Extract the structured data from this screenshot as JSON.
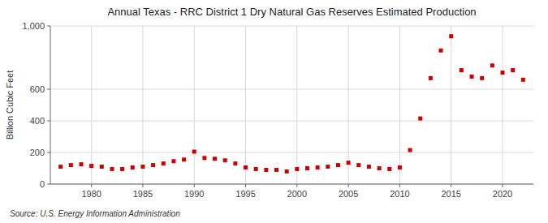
{
  "chart_data": {
    "type": "scatter",
    "title": "Annual Texas - RRC District 1 Dry Natural Gas Reserves Estimated Production",
    "ylabel": "Billion Cubic Feet",
    "annotations": [
      "Source: U.S. Energy Information Administration"
    ],
    "x": [
      1977,
      1978,
      1979,
      1980,
      1981,
      1982,
      1983,
      1984,
      1985,
      1986,
      1987,
      1988,
      1989,
      1990,
      1991,
      1992,
      1993,
      1994,
      1995,
      1996,
      1997,
      1998,
      1999,
      2000,
      2001,
      2002,
      2003,
      2004,
      2005,
      2006,
      2007,
      2008,
      2009,
      2010,
      2011,
      2012,
      2013,
      2014,
      2015,
      2016,
      2017,
      2018,
      2019,
      2020,
      2021,
      2022
    ],
    "values": [
      110,
      120,
      125,
      115,
      110,
      95,
      95,
      105,
      110,
      120,
      130,
      145,
      155,
      205,
      165,
      160,
      150,
      130,
      105,
      95,
      90,
      90,
      80,
      95,
      100,
      105,
      110,
      120,
      135,
      120,
      110,
      100,
      95,
      105,
      215,
      415,
      670,
      845,
      935,
      720,
      680,
      670,
      750,
      705,
      720,
      660
    ],
    "color": "#cc0000",
    "marker": "square",
    "xlim": [
      1976,
      2023
    ],
    "ylim": [
      0,
      1000
    ],
    "xticks": [
      1980,
      1985,
      1990,
      1995,
      2000,
      2005,
      2010,
      2015,
      2020
    ],
    "yticks": [
      0,
      200,
      400,
      600,
      {
        "value": 1000,
        "label": "1,000"
      }
    ],
    "grid": true
  }
}
